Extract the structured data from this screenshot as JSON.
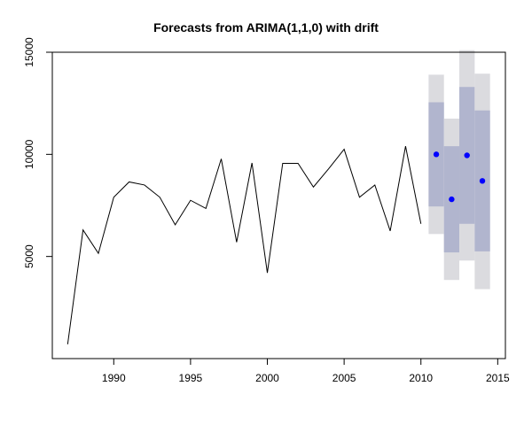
{
  "chart_data": {
    "type": "line",
    "title": "Forecasts from ARIMA(1,1,0) with drift",
    "xlabel": "",
    "ylabel": "",
    "xlim": [
      1986,
      2015.5
    ],
    "ylim": [
      0,
      15000
    ],
    "x_ticks": [
      1990,
      1995,
      2000,
      2005,
      2010,
      2015
    ],
    "x_tick_labels": [
      "1990",
      "1995",
      "2000",
      "2005",
      "2010",
      "2015"
    ],
    "y_ticks": [
      5000,
      10000,
      15000
    ],
    "y_tick_labels": [
      "5000",
      "10000",
      "15000"
    ],
    "grid": false,
    "series": [
      {
        "kind": "observed",
        "color": "#000000",
        "x": [
          1987,
          1988,
          1989,
          1990,
          1991,
          1992,
          1993,
          1994,
          1995,
          1996,
          1997,
          1998,
          1999,
          2000,
          2001,
          2002,
          2003,
          2004,
          2005,
          2006,
          2007,
          2008,
          2009,
          2010
        ],
        "y": [
          700,
          6300,
          5150,
          7900,
          8650,
          8500,
          7900,
          6550,
          7750,
          7350,
          9780,
          5700,
          9580,
          4200,
          9560,
          9560,
          8400,
          9300,
          10250,
          7900,
          8500,
          6250,
          10400,
          6600
        ]
      },
      {
        "kind": "forecast",
        "color": "#0000FF",
        "x": [
          2011,
          2012,
          2013,
          2014
        ],
        "y": [
          10000,
          7800,
          9950,
          8700
        ]
      }
    ],
    "intervals": {
      "x": [
        2011,
        2012,
        2013,
        2014
      ],
      "lo80": [
        7450,
        5200,
        6600,
        5250
      ],
      "hi80": [
        12550,
        10400,
        13300,
        12150
      ],
      "lo95": [
        6100,
        3850,
        4800,
        3400
      ],
      "hi95": [
        13900,
        11750,
        15100,
        13950
      ],
      "color80": "#B1B5CE",
      "color95": "#DBDBDF"
    }
  }
}
